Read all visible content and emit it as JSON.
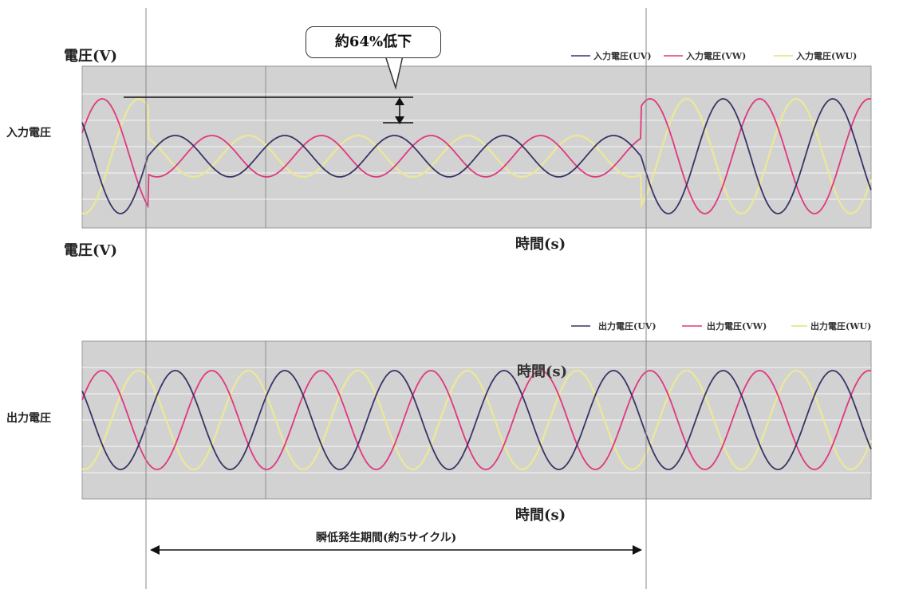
{
  "annotation": {
    "callout": "約64%低下",
    "period": "瞬低発生期間(約5サイクル)"
  },
  "labels": {
    "voltage_top": "電圧(V)",
    "voltage_mid": "電圧(V)",
    "input_row": "入力電圧",
    "output_row": "出力電圧",
    "time_top": "時間(s)",
    "time_overlay": "時間(s)",
    "time_bottom": "時間(s)"
  },
  "colors": {
    "plot_bg": "#d2d2d2",
    "uv": "#3a3466",
    "vw": "#e0387e",
    "wu": "#ebe79a",
    "grid": "#ffffff",
    "frame": "#9a9a9a"
  },
  "chart_data": [
    {
      "type": "line",
      "id": "input",
      "title": "",
      "ylabel": "電圧(V)",
      "xlabel": "時間(s)",
      "frequency_hz": 60,
      "x_range": [
        -0.01,
        0.11
      ],
      "sag_interval_s": [
        0.0,
        0.075
      ],
      "sag_remaining_ratio": 0.36,
      "series": [
        {
          "name": "入力電圧(UV)",
          "color": "#3a3466",
          "phase_deg": 0
        },
        {
          "name": "入力電圧(VW)",
          "color": "#e0387e",
          "phase_deg": -120
        },
        {
          "name": "入力電圧(WU)",
          "color": "#ebe79a",
          "phase_deg": 120
        }
      ],
      "legend": "top-right",
      "grid": true
    },
    {
      "type": "line",
      "id": "output",
      "title": "",
      "xlabel": "時間(s)",
      "frequency_hz": 60,
      "x_range": [
        -0.01,
        0.11
      ],
      "series": [
        {
          "name": "出力電圧(UV)",
          "color": "#3a3466",
          "phase_deg": 0
        },
        {
          "name": "出力電圧(VW)",
          "color": "#e0387e",
          "phase_deg": -120
        },
        {
          "name": "出力電圧(WU)",
          "color": "#ebe79a",
          "phase_deg": 120
        }
      ],
      "legend": "top-right",
      "grid": true
    }
  ]
}
